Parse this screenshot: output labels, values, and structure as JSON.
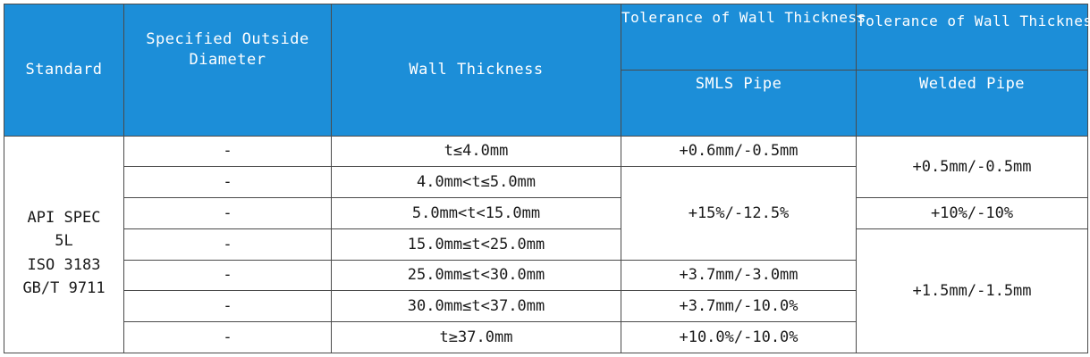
{
  "header": {
    "standard": "Standard",
    "outside_diameter_line1": "Specified Outside",
    "outside_diameter_line2": "Diameter",
    "wall_thickness": "Wall Thickness",
    "tolerance_smls": "Tolerance of Wall Thickness",
    "tolerance_welded": "Tolerance of Wall Thickness",
    "smls_pipe": "SMLS Pipe",
    "welded_pipe": "Welded Pipe"
  },
  "standards": [
    "API SPEC",
    "5L",
    "ISO 3183",
    "GB/T 9711"
  ],
  "rows": [
    {
      "outside_diameter": "-",
      "wall_thickness": "t≤4.0mm"
    },
    {
      "outside_diameter": "-",
      "wall_thickness": "4.0mm<t≤5.0mm"
    },
    {
      "outside_diameter": "-",
      "wall_thickness": "5.0mm<t<15.0mm"
    },
    {
      "outside_diameter": "-",
      "wall_thickness": "15.0mm≤t<25.0mm"
    },
    {
      "outside_diameter": "-",
      "wall_thickness": "25.0mm≤t<30.0mm"
    },
    {
      "outside_diameter": "-",
      "wall_thickness": "30.0mm≤t<37.0mm"
    },
    {
      "outside_diameter": "-",
      "wall_thickness": "t≥37.0mm"
    }
  ],
  "smls_tolerance": [
    "+0.6mm/-0.5mm",
    "+15%/-12.5%",
    "+3.7mm/-3.0mm",
    "+3.7mm/-10.0%",
    "+10.0%/-10.0%"
  ],
  "welded_tolerance": [
    "+0.5mm/-0.5mm",
    "+10%/-10%",
    "+1.5mm/-1.5mm"
  ],
  "colors": {
    "header_bg": "#1c8ed8",
    "header_text": "#ffffff",
    "border": "#4a4a4a"
  }
}
